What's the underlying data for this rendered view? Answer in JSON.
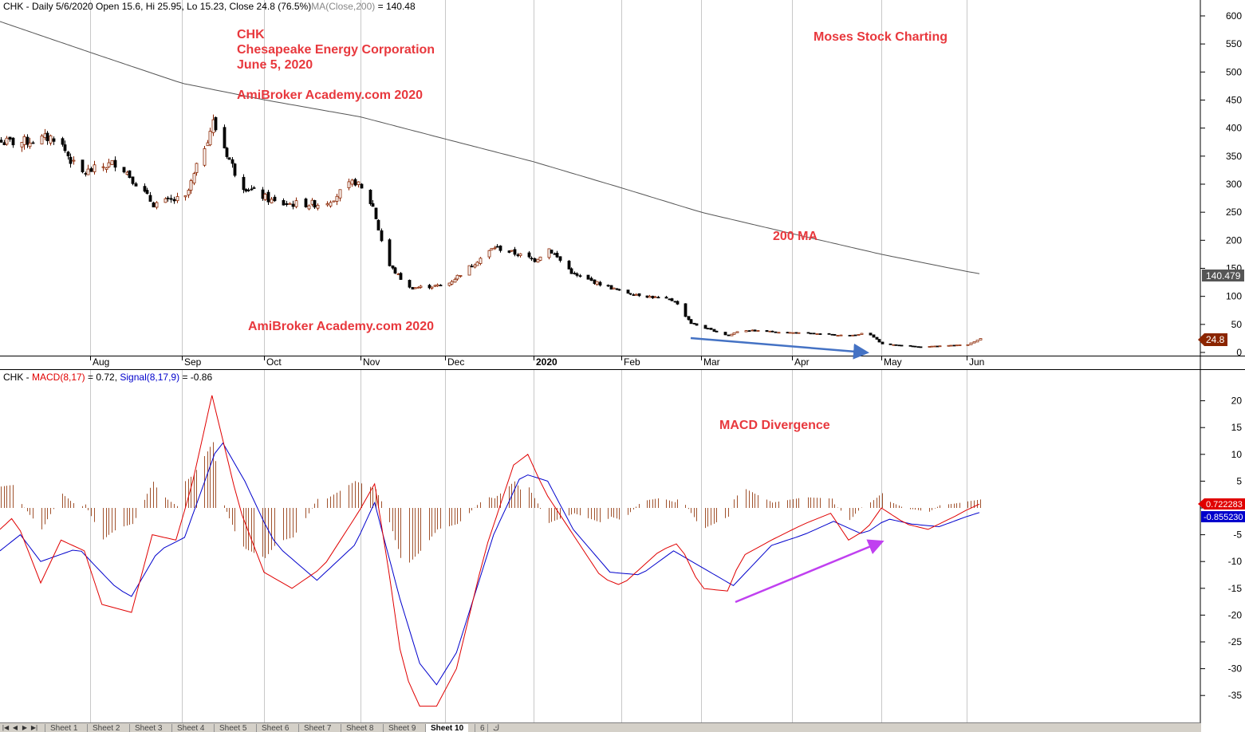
{
  "window": {
    "title": "CHK - Daily"
  },
  "price_pane": {
    "header": {
      "text": "CHK - Daily 5/6/2020 Open 15.6, Hi 25.95, Lo 15.23, Close 24.8 (76.5%)",
      "ma_label": "MA(Close,200)",
      "ma_value": " = 140.48"
    },
    "annotations": {
      "ticker": "CHK",
      "company": "Chesapeake Energy Corporation",
      "date": "June 5, 2020",
      "site_top": "AmiBroker Academy.com 2020",
      "site_bottom": "AmiBroker Academy.com 2020",
      "brand": "Moses Stock Charting",
      "ma_note": "200 MA"
    },
    "ma_badge": "140.479",
    "close_badge": "24.8"
  },
  "macd_pane": {
    "header": {
      "prefix": "CHK - ",
      "macd_label": "MACD(8,17)",
      "macd_value": " = 0.72, ",
      "signal_label": "Signal(8,17,9)",
      "signal_value": " = -0.86"
    },
    "annotation": "MACD Divergence",
    "macd_badge": "0.722283",
    "signal_badge": "-0.855230"
  },
  "tabs": [
    "Sheet 1",
    "Sheet 2",
    "Sheet 3",
    "Sheet 4",
    "Sheet 5",
    "Sheet 6",
    "Sheet 7",
    "Sheet 8",
    "Sheet 9",
    "Sheet 10",
    "6",
    "ك"
  ],
  "active_tab": "Sheet 10",
  "colors": {
    "bull_candle": "#8b2500",
    "bear_candle": "#000000",
    "ma_line": "#555555",
    "macd_line": "#e00000",
    "signal_line": "#0000cc",
    "histogram": "#a0522d",
    "annotation_text": "#e8383d",
    "price_arrow": "#4472c4",
    "macd_arrow": "#c040f0",
    "ma_badge_bg": "#555555",
    "close_badge_bg": "#8b2500",
    "macd_badge_bg": "#e00000",
    "signal_badge_bg": "#0000cc"
  },
  "chart_data": [
    {
      "type": "candlestick",
      "title": "CHK - Daily",
      "x_labels": [
        "Aug",
        "Sep",
        "Oct",
        "Nov",
        "Dec",
        "2020",
        "Feb",
        "Mar",
        "Apr",
        "May",
        "Jun"
      ],
      "y_ticks": [
        0,
        50,
        100,
        150,
        200,
        250,
        300,
        350,
        400,
        450,
        500,
        550,
        600
      ],
      "ylim": [
        0,
        620
      ],
      "close_path": [
        {
          "date": "2019-07-08",
          "close": 375
        },
        {
          "date": "2019-07-20",
          "close": 385
        },
        {
          "date": "2019-07-28",
          "close": 318
        },
        {
          "date": "2019-08-10",
          "close": 340
        },
        {
          "date": "2019-08-22",
          "close": 265
        },
        {
          "date": "2019-09-02",
          "close": 275
        },
        {
          "date": "2019-09-12",
          "close": 410
        },
        {
          "date": "2019-09-22",
          "close": 300
        },
        {
          "date": "2019-10-05",
          "close": 265
        },
        {
          "date": "2019-10-20",
          "close": 265
        },
        {
          "date": "2019-10-30",
          "close": 305
        },
        {
          "date": "2019-11-05",
          "close": 260
        },
        {
          "date": "2019-11-10",
          "close": 160
        },
        {
          "date": "2019-11-18",
          "close": 115
        },
        {
          "date": "2019-12-01",
          "close": 120
        },
        {
          "date": "2019-12-18",
          "close": 188
        },
        {
          "date": "2020-01-01",
          "close": 165
        },
        {
          "date": "2020-01-06",
          "close": 185
        },
        {
          "date": "2020-01-15",
          "close": 138
        },
        {
          "date": "2020-02-01",
          "close": 108
        },
        {
          "date": "2020-02-20",
          "close": 92
        },
        {
          "date": "2020-02-26",
          "close": 52
        },
        {
          "date": "2020-03-10",
          "close": 30
        },
        {
          "date": "2020-03-14",
          "close": 40
        },
        {
          "date": "2020-04-20",
          "close": 30
        },
        {
          "date": "2020-04-26",
          "close": 35
        },
        {
          "date": "2020-05-01",
          "close": 15
        },
        {
          "date": "2020-05-15",
          "close": 10
        },
        {
          "date": "2020-06-01",
          "close": 14
        },
        {
          "date": "2020-06-05",
          "close": 24.8
        }
      ],
      "ma200": [
        {
          "date": "2019-07-01",
          "close": 590
        },
        {
          "date": "2019-09-01",
          "close": 480
        },
        {
          "date": "2019-11-01",
          "close": 420
        },
        {
          "date": "2020-01-01",
          "close": 340
        },
        {
          "date": "2020-03-01",
          "close": 250
        },
        {
          "date": "2020-05-01",
          "close": 175
        },
        {
          "date": "2020-06-05",
          "close": 140.48
        }
      ]
    },
    {
      "type": "line",
      "title": "MACD(8,17), Signal(8,17,9)",
      "y_ticks": [
        -35,
        -30,
        -25,
        -20,
        -15,
        -10,
        -5,
        0,
        5,
        10,
        15,
        20
      ],
      "ylim": [
        -39.5,
        25
      ],
      "series": [
        {
          "name": "MACD(8,17)",
          "points": [
            {
              "date": "2019-07-01",
              "value": -4
            },
            {
              "date": "2019-07-06",
              "value": -1.5
            },
            {
              "date": "2019-07-15",
              "value": -14
            },
            {
              "date": "2019-07-22",
              "value": -6
            },
            {
              "date": "2019-07-30",
              "value": -8
            },
            {
              "date": "2019-08-05",
              "value": -18
            },
            {
              "date": "2019-08-15",
              "value": -19.5
            },
            {
              "date": "2019-08-22",
              "value": -5
            },
            {
              "date": "2019-08-30",
              "value": -6
            },
            {
              "date": "2019-09-05",
              "value": 5
            },
            {
              "date": "2019-09-12",
              "value": 21
            },
            {
              "date": "2019-09-22",
              "value": 0
            },
            {
              "date": "2019-10-01",
              "value": -12
            },
            {
              "date": "2019-10-10",
              "value": -15
            },
            {
              "date": "2019-10-20",
              "value": -11
            },
            {
              "date": "2019-10-30",
              "value": -2
            },
            {
              "date": "2019-11-06",
              "value": 4.5
            },
            {
              "date": "2019-11-10",
              "value": -8
            },
            {
              "date": "2019-11-16",
              "value": -30
            },
            {
              "date": "2019-11-22",
              "value": -37
            },
            {
              "date": "2019-11-28",
              "value": -37
            },
            {
              "date": "2019-12-05",
              "value": -30
            },
            {
              "date": "2019-12-15",
              "value": -8
            },
            {
              "date": "2019-12-25",
              "value": 8
            },
            {
              "date": "2019-12-30",
              "value": 10
            },
            {
              "date": "2020-01-05",
              "value": 3
            },
            {
              "date": "2020-01-15",
              "value": -5
            },
            {
              "date": "2020-01-25",
              "value": -13
            },
            {
              "date": "2020-02-01",
              "value": -14.5
            },
            {
              "date": "2020-02-15",
              "value": -8
            },
            {
              "date": "2020-02-22",
              "value": -6.5
            },
            {
              "date": "2020-03-01",
              "value": -15
            },
            {
              "date": "2020-03-10",
              "value": -15.5
            },
            {
              "date": "2020-03-15",
              "value": -9
            },
            {
              "date": "2020-03-25",
              "value": -6
            },
            {
              "date": "2020-04-05",
              "value": -3
            },
            {
              "date": "2020-04-14",
              "value": -1
            },
            {
              "date": "2020-04-20",
              "value": -6
            },
            {
              "date": "2020-04-26",
              "value": -4
            },
            {
              "date": "2020-05-01",
              "value": 0
            },
            {
              "date": "2020-05-10",
              "value": -3
            },
            {
              "date": "2020-05-18",
              "value": -4
            },
            {
              "date": "2020-05-28",
              "value": -1.5
            },
            {
              "date": "2020-06-05",
              "value": 0.72
            }
          ]
        },
        {
          "name": "Signal(8,17,9)",
          "points": [
            {
              "date": "2019-07-01",
              "value": -8
            },
            {
              "date": "2019-07-08",
              "value": -5
            },
            {
              "date": "2019-07-15",
              "value": -10
            },
            {
              "date": "2019-07-28",
              "value": -7.5
            },
            {
              "date": "2019-08-10",
              "value": -15
            },
            {
              "date": "2019-08-15",
              "value": -16.5
            },
            {
              "date": "2019-08-24",
              "value": -8
            },
            {
              "date": "2019-09-02",
              "value": -5.5
            },
            {
              "date": "2019-09-15",
              "value": 13
            },
            {
              "date": "2019-09-24",
              "value": 5
            },
            {
              "date": "2019-10-05",
              "value": -7
            },
            {
              "date": "2019-10-18",
              "value": -13.5
            },
            {
              "date": "2019-10-30",
              "value": -7
            },
            {
              "date": "2019-11-06",
              "value": 1
            },
            {
              "date": "2019-11-15",
              "value": -17
            },
            {
              "date": "2019-11-22",
              "value": -29
            },
            {
              "date": "2019-11-28",
              "value": -33
            },
            {
              "date": "2019-12-05",
              "value": -27
            },
            {
              "date": "2019-12-18",
              "value": -5
            },
            {
              "date": "2019-12-28",
              "value": 6.5
            },
            {
              "date": "2020-01-06",
              "value": 5
            },
            {
              "date": "2020-01-15",
              "value": -4
            },
            {
              "date": "2020-01-28",
              "value": -12
            },
            {
              "date": "2020-02-08",
              "value": -12.5
            },
            {
              "date": "2020-02-20",
              "value": -8
            },
            {
              "date": "2020-03-01",
              "value": -11
            },
            {
              "date": "2020-03-12",
              "value": -14.5
            },
            {
              "date": "2020-03-25",
              "value": -7
            },
            {
              "date": "2020-04-05",
              "value": -5
            },
            {
              "date": "2020-04-15",
              "value": -2.5
            },
            {
              "date": "2020-04-25",
              "value": -5
            },
            {
              "date": "2020-05-03",
              "value": -2
            },
            {
              "date": "2020-05-12",
              "value": -3
            },
            {
              "date": "2020-05-22",
              "value": -3.5
            },
            {
              "date": "2020-06-05",
              "value": -0.86
            }
          ]
        }
      ]
    }
  ]
}
